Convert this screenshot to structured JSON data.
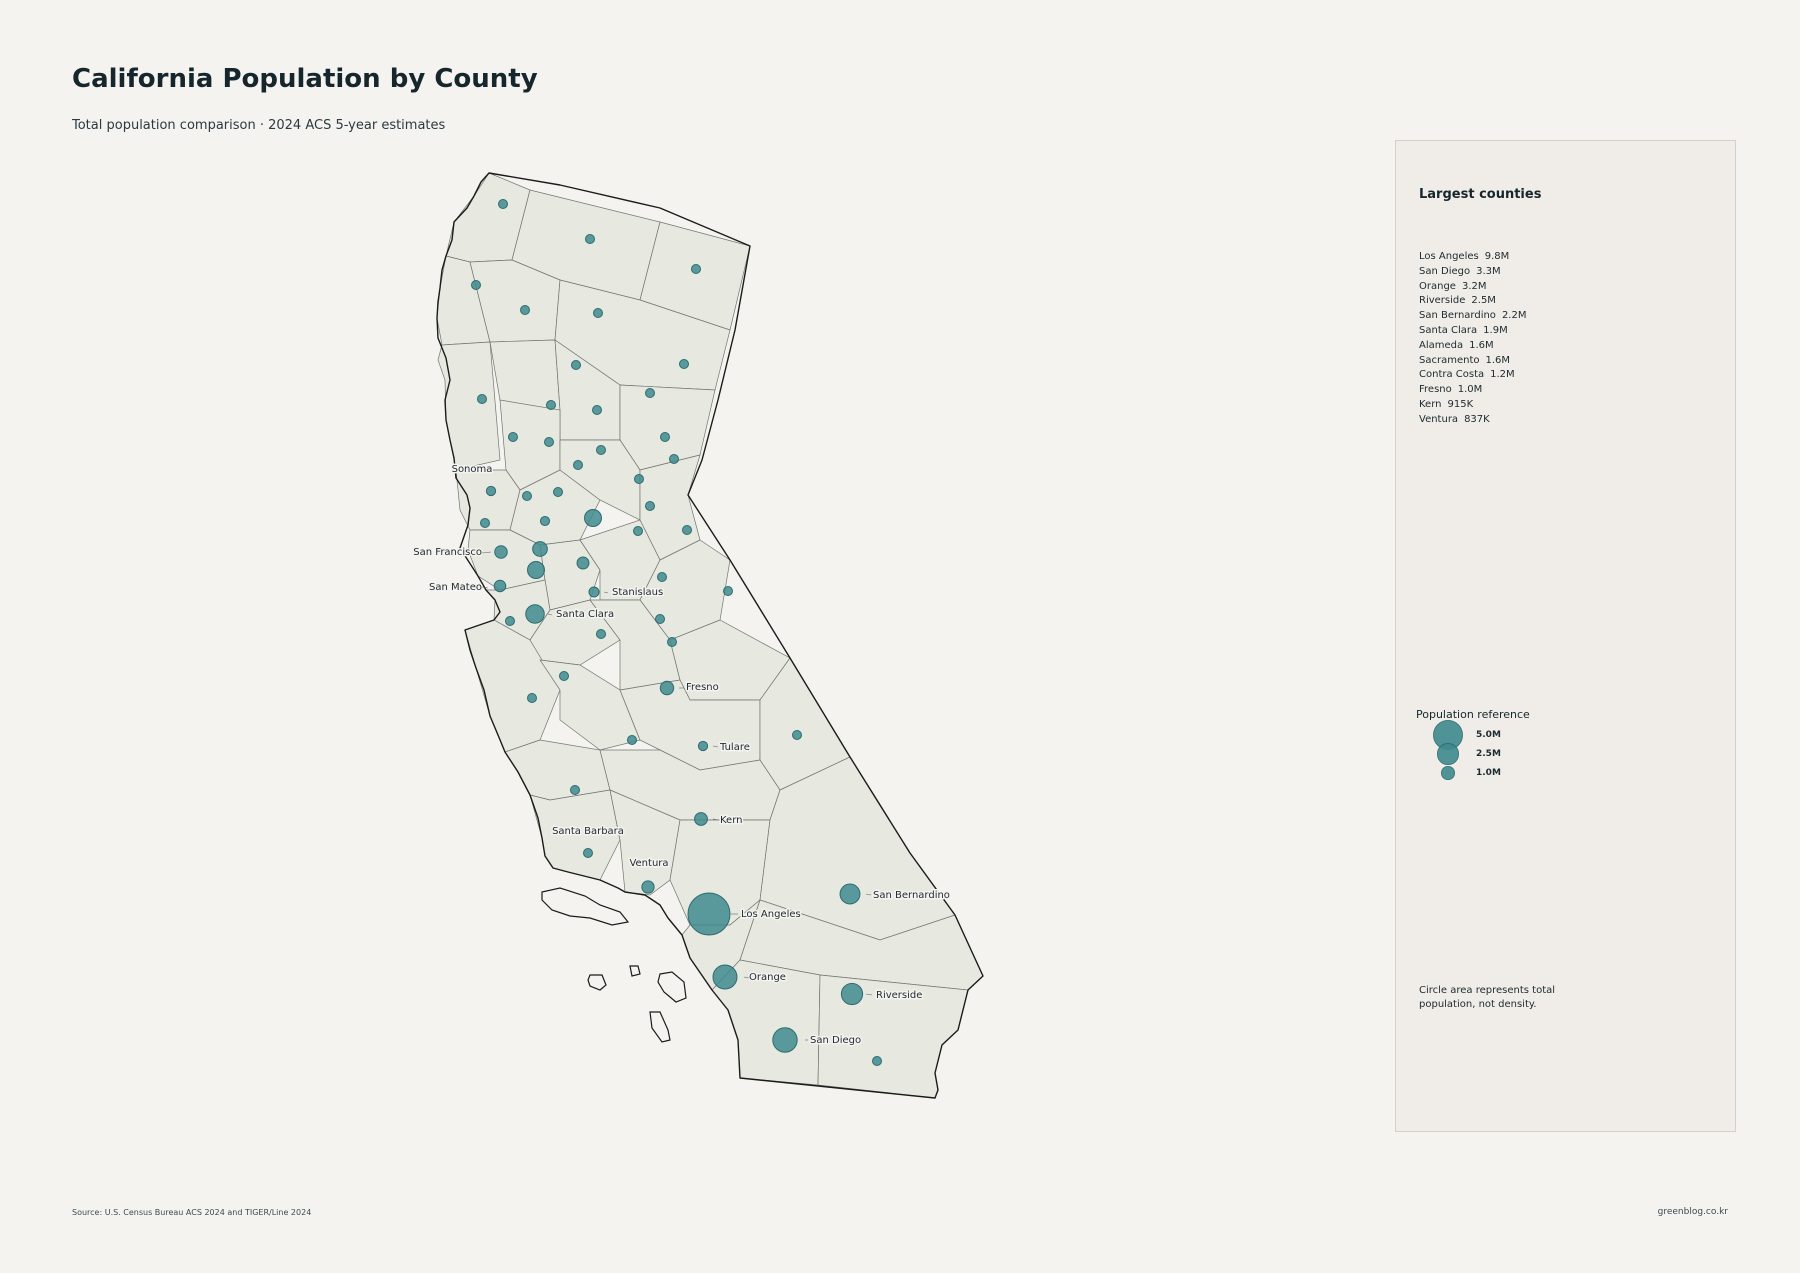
{
  "title": "California Population by County",
  "subtitle": "Total population comparison · 2024 ACS 5-year estimates",
  "panel": {
    "heading": "Largest counties",
    "largest": [
      {
        "name": "Los Angeles",
        "value": "9.8M"
      },
      {
        "name": "San Diego",
        "value": "3.3M"
      },
      {
        "name": "Orange",
        "value": "3.2M"
      },
      {
        "name": "Riverside",
        "value": "2.5M"
      },
      {
        "name": "San Bernardino",
        "value": "2.2M"
      },
      {
        "name": "Santa Clara",
        "value": "1.9M"
      },
      {
        "name": "Alameda",
        "value": "1.6M"
      },
      {
        "name": "Sacramento",
        "value": "1.6M"
      },
      {
        "name": "Contra Costa",
        "value": "1.2M"
      },
      {
        "name": "Fresno",
        "value": "1.0M"
      },
      {
        "name": "Kern",
        "value": "915K"
      },
      {
        "name": "Ventura",
        "value": "837K"
      }
    ],
    "legend": {
      "title": "Population reference",
      "items": [
        {
          "label": "5.0M",
          "population": 5000000
        },
        {
          "label": "2.5M",
          "population": 2500000
        },
        {
          "label": "1.0M",
          "population": 1000000
        }
      ]
    },
    "note": "Circle area represents total population, not density."
  },
  "map": {
    "bubble_color": "#3f8a8e",
    "county_fill": "#e7e8e0",
    "labels": [
      "Sonoma",
      "San Francisco",
      "San Mateo",
      "Stanislaus",
      "Santa Clara",
      "Fresno",
      "Tulare",
      "Kern",
      "Santa Barbara",
      "Ventura",
      "Los Angeles",
      "Orange",
      "Riverside",
      "San Bernardino",
      "San Diego"
    ]
  },
  "footer": {
    "source": "Source: U.S. Census Bureau ACS 2024 and TIGER/Line 2024",
    "credit": "greenblog.co.kr"
  }
}
